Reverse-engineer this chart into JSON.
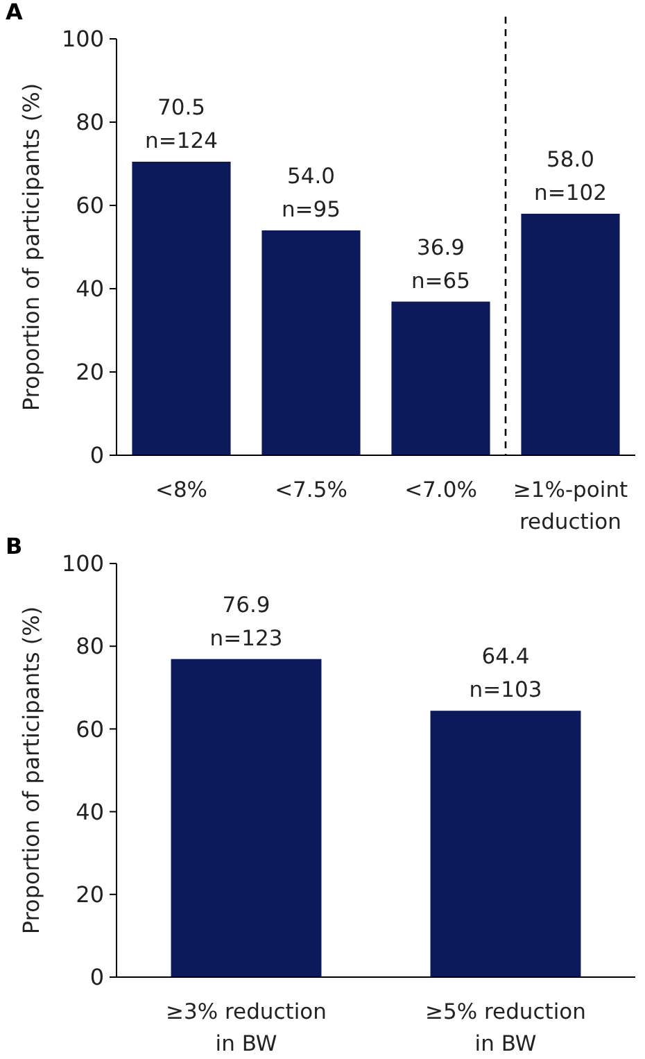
{
  "chart_data": [
    {
      "type": "bar",
      "title": "A",
      "ylabel": "Proportion of participants (%)",
      "categories": [
        "<8%",
        "<7.5%",
        "<7.0%",
        "≥1%-point reduction"
      ],
      "values": [
        70.5,
        54.0,
        36.9,
        58.0
      ],
      "value_labels": [
        "70.5\nn=124",
        "54.0\nn=95",
        "36.9\nn=65",
        "58.0\nn=102"
      ],
      "color": "#0c1a5c",
      "ylim": [
        0,
        100
      ],
      "yticks": [
        0,
        20,
        40,
        60,
        80,
        100
      ],
      "grid": false
    },
    {
      "type": "bar",
      "title": "B",
      "ylabel": "Proportion of participants (%)",
      "categories": [
        "≥3% reduction in BW",
        "≥5% reduction in BW"
      ],
      "values": [
        76.9,
        64.4
      ],
      "value_labels": [
        "76.9\nn=123",
        "64.4\nn=103"
      ],
      "color": "#0c1a5c",
      "ylim": [
        0,
        100
      ],
      "yticks": [
        0,
        20,
        40,
        60,
        80,
        100
      ],
      "grid": false
    }
  ]
}
